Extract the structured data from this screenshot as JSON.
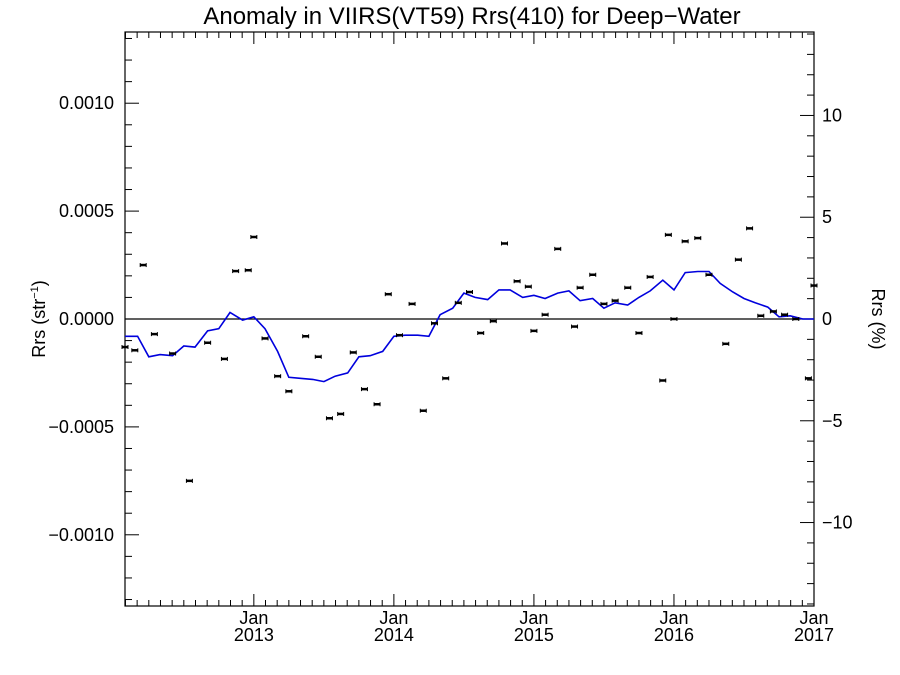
{
  "chart_data": {
    "type": "line",
    "title": "Anomaly in VIIRS(VT59) Rrs(410) for Deep−Water",
    "ylabel_left": {
      "main": "Rrs (str",
      "sup": "−1",
      "close": ")"
    },
    "ylabel_right": "Rrs (%)",
    "xlim": [
      2012.08,
      2017.0
    ],
    "ylim_left": [
      -0.00133,
      0.00133
    ],
    "ylim_right": [
      -14.1,
      14.1
    ],
    "grid": false,
    "x_ticks": [
      {
        "x": 2013,
        "month": "Jan",
        "year": "2013"
      },
      {
        "x": 2014,
        "month": "Jan",
        "year": "2014"
      },
      {
        "x": 2015,
        "month": "Jan",
        "year": "2015"
      },
      {
        "x": 2016,
        "month": "Jan",
        "year": "2016"
      },
      {
        "x": 2017,
        "month": "Jan",
        "year": "2017"
      }
    ],
    "y_ticks_left": [
      {
        "v": 0.001,
        "label": "0.0010"
      },
      {
        "v": 0.0005,
        "label": "0.0005"
      },
      {
        "v": 0.0,
        "label": "0.0000"
      },
      {
        "v": -0.0005,
        "label": "−0.0005"
      },
      {
        "v": -0.001,
        "label": "−0.0010"
      }
    ],
    "y_ticks_right": [
      {
        "v": 10,
        "label": "10"
      },
      {
        "v": 5,
        "label": "5"
      },
      {
        "v": 0,
        "label": "0"
      },
      {
        "v": -5,
        "label": "−5"
      },
      {
        "v": -10,
        "label": "−10"
      }
    ],
    "series": [
      {
        "kind": "points",
        "color": "#000000",
        "x": [
          2012.08,
          2012.15,
          2012.21,
          2012.29,
          2012.42,
          2012.54,
          2012.67,
          2012.79,
          2012.87,
          2012.96,
          2013.0,
          2013.08,
          2013.17,
          2013.25,
          2013.37,
          2013.46,
          2013.54,
          2013.62,
          2013.71,
          2013.79,
          2013.88,
          2013.96,
          2014.04,
          2014.13,
          2014.21,
          2014.29,
          2014.37,
          2014.46,
          2014.54,
          2014.62,
          2014.71,
          2014.79,
          2014.88,
          2014.96,
          2015.0,
          2015.08,
          2015.17,
          2015.29,
          2015.33,
          2015.42,
          2015.5,
          2015.58,
          2015.67,
          2015.75,
          2015.83,
          2015.92,
          2015.96,
          2016.0,
          2016.08,
          2016.17,
          2016.25,
          2016.37,
          2016.46,
          2016.54,
          2016.62,
          2016.71,
          2016.79,
          2016.87,
          2016.96,
          2017.0
        ],
        "y": [
          -0.00013,
          -0.000145,
          0.00025,
          -7e-05,
          -0.00016,
          -0.00075,
          -0.00011,
          -0.000185,
          0.000222,
          0.000226,
          0.00038,
          -9e-05,
          -0.000265,
          -0.000335,
          -8e-05,
          -0.000175,
          -0.00046,
          -0.00044,
          -0.000155,
          -0.000325,
          -0.000395,
          0.000115,
          -7.5e-05,
          7e-05,
          -0.000425,
          -2e-05,
          -0.000275,
          7.5e-05,
          0.000125,
          -6.5e-05,
          -1e-05,
          0.00035,
          0.000175,
          0.00015,
          -5.5e-05,
          2e-05,
          0.000325,
          -3.5e-05,
          0.000145,
          0.000205,
          7e-05,
          8.5e-05,
          0.000145,
          -6.5e-05,
          0.000195,
          -0.000285,
          0.00039,
          0.0,
          0.00036,
          0.000375,
          0.000205,
          -0.000115,
          0.000275,
          0.00042,
          1.5e-05,
          3.5e-05,
          2e-05,
          0.0,
          -0.000275,
          0.000155
        ]
      },
      {
        "kind": "line",
        "color": "#0000dd",
        "x": [
          2012.08,
          2012.17,
          2012.25,
          2012.33,
          2012.42,
          2012.5,
          2012.58,
          2012.67,
          2012.75,
          2012.83,
          2012.92,
          2013.0,
          2013.08,
          2013.17,
          2013.25,
          2013.33,
          2013.42,
          2013.5,
          2013.58,
          2013.67,
          2013.75,
          2013.83,
          2013.92,
          2014.0,
          2014.08,
          2014.17,
          2014.25,
          2014.33,
          2014.42,
          2014.5,
          2014.58,
          2014.67,
          2014.75,
          2014.83,
          2014.92,
          2015.0,
          2015.08,
          2015.17,
          2015.25,
          2015.33,
          2015.42,
          2015.5,
          2015.58,
          2015.67,
          2015.75,
          2015.83,
          2015.92,
          2016.0,
          2016.08,
          2016.17,
          2016.25,
          2016.33,
          2016.42,
          2016.5,
          2016.58,
          2016.67,
          2016.75,
          2016.83,
          2016.92,
          2017.0
        ],
        "y": [
          -8e-05,
          -8e-05,
          -0.000175,
          -0.000165,
          -0.00017,
          -0.000125,
          -0.00013,
          -5.5e-05,
          -4.5e-05,
          3e-05,
          -5e-06,
          1e-05,
          -4.5e-05,
          -0.00015,
          -0.00027,
          -0.000275,
          -0.00028,
          -0.00029,
          -0.000265,
          -0.00025,
          -0.000175,
          -0.00017,
          -0.00015,
          -8e-05,
          -7.5e-05,
          -7.5e-05,
          -8e-05,
          2e-05,
          5e-05,
          0.00012,
          0.0001,
          9e-05,
          0.000135,
          0.000135,
          0.0001,
          0.00011,
          9.5e-05,
          0.00012,
          0.00013,
          8.5e-05,
          9.5e-05,
          5e-05,
          7.5e-05,
          6.5e-05,
          0.0001,
          0.00013,
          0.00018,
          0.000135,
          0.000215,
          0.00022,
          0.00022,
          0.000165,
          0.000125,
          9.5e-05,
          7.5e-05,
          5.5e-05,
          1e-05,
          1.5e-05,
          0.0,
          0.0
        ]
      }
    ]
  }
}
